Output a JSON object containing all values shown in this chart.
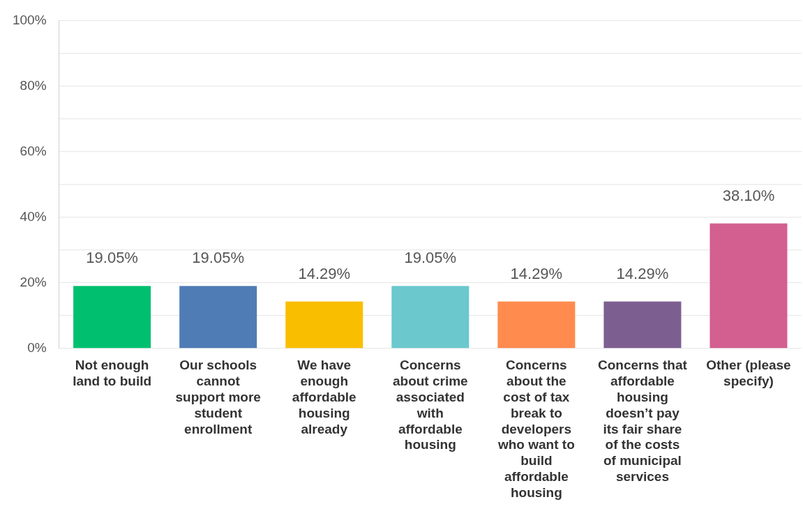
{
  "chart_data": {
    "type": "bar",
    "categories": [
      "Not enough land to build",
      "Our schools cannot support more student enrollment",
      "We have enough affordable housing already",
      "Concerns about crime associated with affordable housing",
      "Concerns about the cost of tax break to developers who want to build affordable housing",
      "Concerns that affordable housing doesn’t pay its fair share of the costs of municipal services",
      "Other (please specify)"
    ],
    "values": [
      19.05,
      19.05,
      14.29,
      19.05,
      14.29,
      14.29,
      38.1
    ],
    "colors": [
      "#00bf6f",
      "#507cb6",
      "#f9be00",
      "#6bc8cd",
      "#ff8b4f",
      "#7d5e90",
      "#d25f90"
    ],
    "value_labels": [
      "19.05%",
      "19.05%",
      "14.29%",
      "19.05%",
      "14.29%",
      "14.29%",
      "38.10%"
    ],
    "ylim": [
      0,
      100
    ],
    "yticks": [
      {
        "value": 0,
        "label": "0%"
      },
      {
        "value": 10,
        "label": null
      },
      {
        "value": 20,
        "label": "20%"
      },
      {
        "value": 30,
        "label": null
      },
      {
        "value": 40,
        "label": "40%"
      },
      {
        "value": 50,
        "label": null
      },
      {
        "value": 60,
        "label": "60%"
      },
      {
        "value": 70,
        "label": null
      },
      {
        "value": 80,
        "label": "80%"
      },
      {
        "value": 90,
        "label": null
      },
      {
        "value": 100,
        "label": "100%"
      }
    ],
    "grid": "y",
    "legend": false
  }
}
